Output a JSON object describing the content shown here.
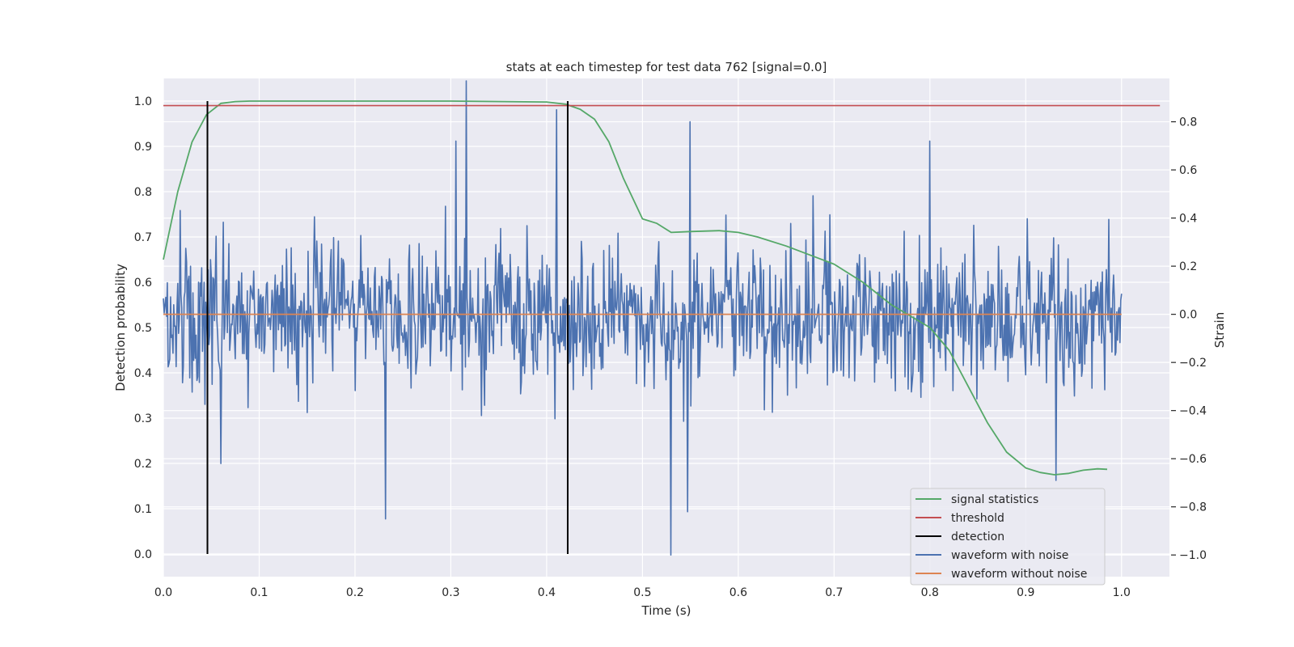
{
  "chart_data": {
    "type": "line",
    "title": "stats at each timestep for test data 762 [signal=0.0]",
    "xlabel": "Time (s)",
    "ylabel_left": "Detection probability",
    "ylabel_right": "Strain",
    "xlim": [
      0.0,
      1.05
    ],
    "ylim_left": [
      -0.05,
      1.05
    ],
    "ylim_right": [
      -1.09,
      0.98
    ],
    "xticks": [
      "0.0",
      "0.1",
      "0.2",
      "0.3",
      "0.4",
      "0.5",
      "0.6",
      "0.7",
      "0.8",
      "0.9",
      "1.0"
    ],
    "xtick_values": [
      0.0,
      0.1,
      0.2,
      0.3,
      0.4,
      0.5,
      0.6,
      0.7,
      0.8,
      0.9,
      1.0
    ],
    "yticks_left": [
      "0.0",
      "0.1",
      "0.2",
      "0.3",
      "0.4",
      "0.5",
      "0.6",
      "0.7",
      "0.8",
      "0.9",
      "1.0"
    ],
    "ytick_values_left": [
      0.0,
      0.1,
      0.2,
      0.3,
      0.4,
      0.5,
      0.6,
      0.7,
      0.8,
      0.9,
      1.0
    ],
    "yticks_right": [
      "−1.0",
      "−0.8",
      "−0.6",
      "−0.4",
      "−0.2",
      "0.0",
      "0.2",
      "0.4",
      "0.6",
      "0.8"
    ],
    "ytick_values_right": [
      -1.0,
      -0.8,
      -0.6,
      -0.4,
      -0.2,
      0.0,
      0.2,
      0.4,
      0.6,
      0.8
    ],
    "grid": true,
    "legend_position": "bottom-right",
    "colors": {
      "background": "#eaeaf2",
      "grid": "#ffffff",
      "signal_statistics": "#55a868",
      "threshold": "#c44e52",
      "detection": "#000000",
      "waveform_with_noise": "#4c72b0",
      "waveform_without_noise": "#dd8452"
    },
    "series": [
      {
        "name": "signal statistics",
        "axis": "left",
        "x": [
          0.0,
          0.015,
          0.03,
          0.045,
          0.06,
          0.075,
          0.09,
          0.12,
          0.2,
          0.3,
          0.4,
          0.42,
          0.435,
          0.45,
          0.465,
          0.48,
          0.5,
          0.515,
          0.53,
          0.55,
          0.58,
          0.6,
          0.62,
          0.65,
          0.7,
          0.73,
          0.76,
          0.8,
          0.82,
          0.84,
          0.86,
          0.88,
          0.9,
          0.915,
          0.93,
          0.945,
          0.96,
          0.975,
          0.985
        ],
        "values": [
          0.65,
          0.8,
          0.91,
          0.97,
          0.995,
          0.999,
          1.0,
          1.0,
          1.0,
          1.0,
          0.998,
          0.993,
          0.982,
          0.96,
          0.91,
          0.83,
          0.74,
          0.73,
          0.71,
          0.712,
          0.714,
          0.71,
          0.7,
          0.68,
          0.64,
          0.6,
          0.55,
          0.5,
          0.45,
          0.37,
          0.29,
          0.225,
          0.19,
          0.18,
          0.175,
          0.178,
          0.185,
          0.188,
          0.187
        ]
      },
      {
        "name": "threshold",
        "axis": "left",
        "x": [
          0.0,
          1.04
        ],
        "values": [
          0.99,
          0.99
        ]
      },
      {
        "name": "detection",
        "axis": "left",
        "x": [
          0.046,
          0.422
        ],
        "y_range": [
          0.0,
          1.0
        ]
      },
      {
        "name": "waveform with noise",
        "axis": "right",
        "x_start": 0.0,
        "x_end": 1.0,
        "points": 1200,
        "amplitude_range": [
          -1.0,
          0.97
        ],
        "highlights": [
          {
            "x": 0.232,
            "value": -0.85
          },
          {
            "x": 0.316,
            "value": 0.97
          },
          {
            "x": 0.305,
            "value": 0.72
          },
          {
            "x": 0.41,
            "value": 0.85
          },
          {
            "x": 0.53,
            "value": -1.0
          },
          {
            "x": 0.55,
            "value": 0.8
          },
          {
            "x": 0.547,
            "value": -0.82
          },
          {
            "x": 0.8,
            "value": 0.72
          },
          {
            "x": 0.932,
            "value": -0.69
          },
          {
            "x": 0.06,
            "value": -0.62
          }
        ]
      },
      {
        "name": "waveform without noise",
        "axis": "right",
        "x": [
          0.0,
          1.0
        ],
        "values": [
          0.0,
          0.0
        ]
      }
    ]
  }
}
